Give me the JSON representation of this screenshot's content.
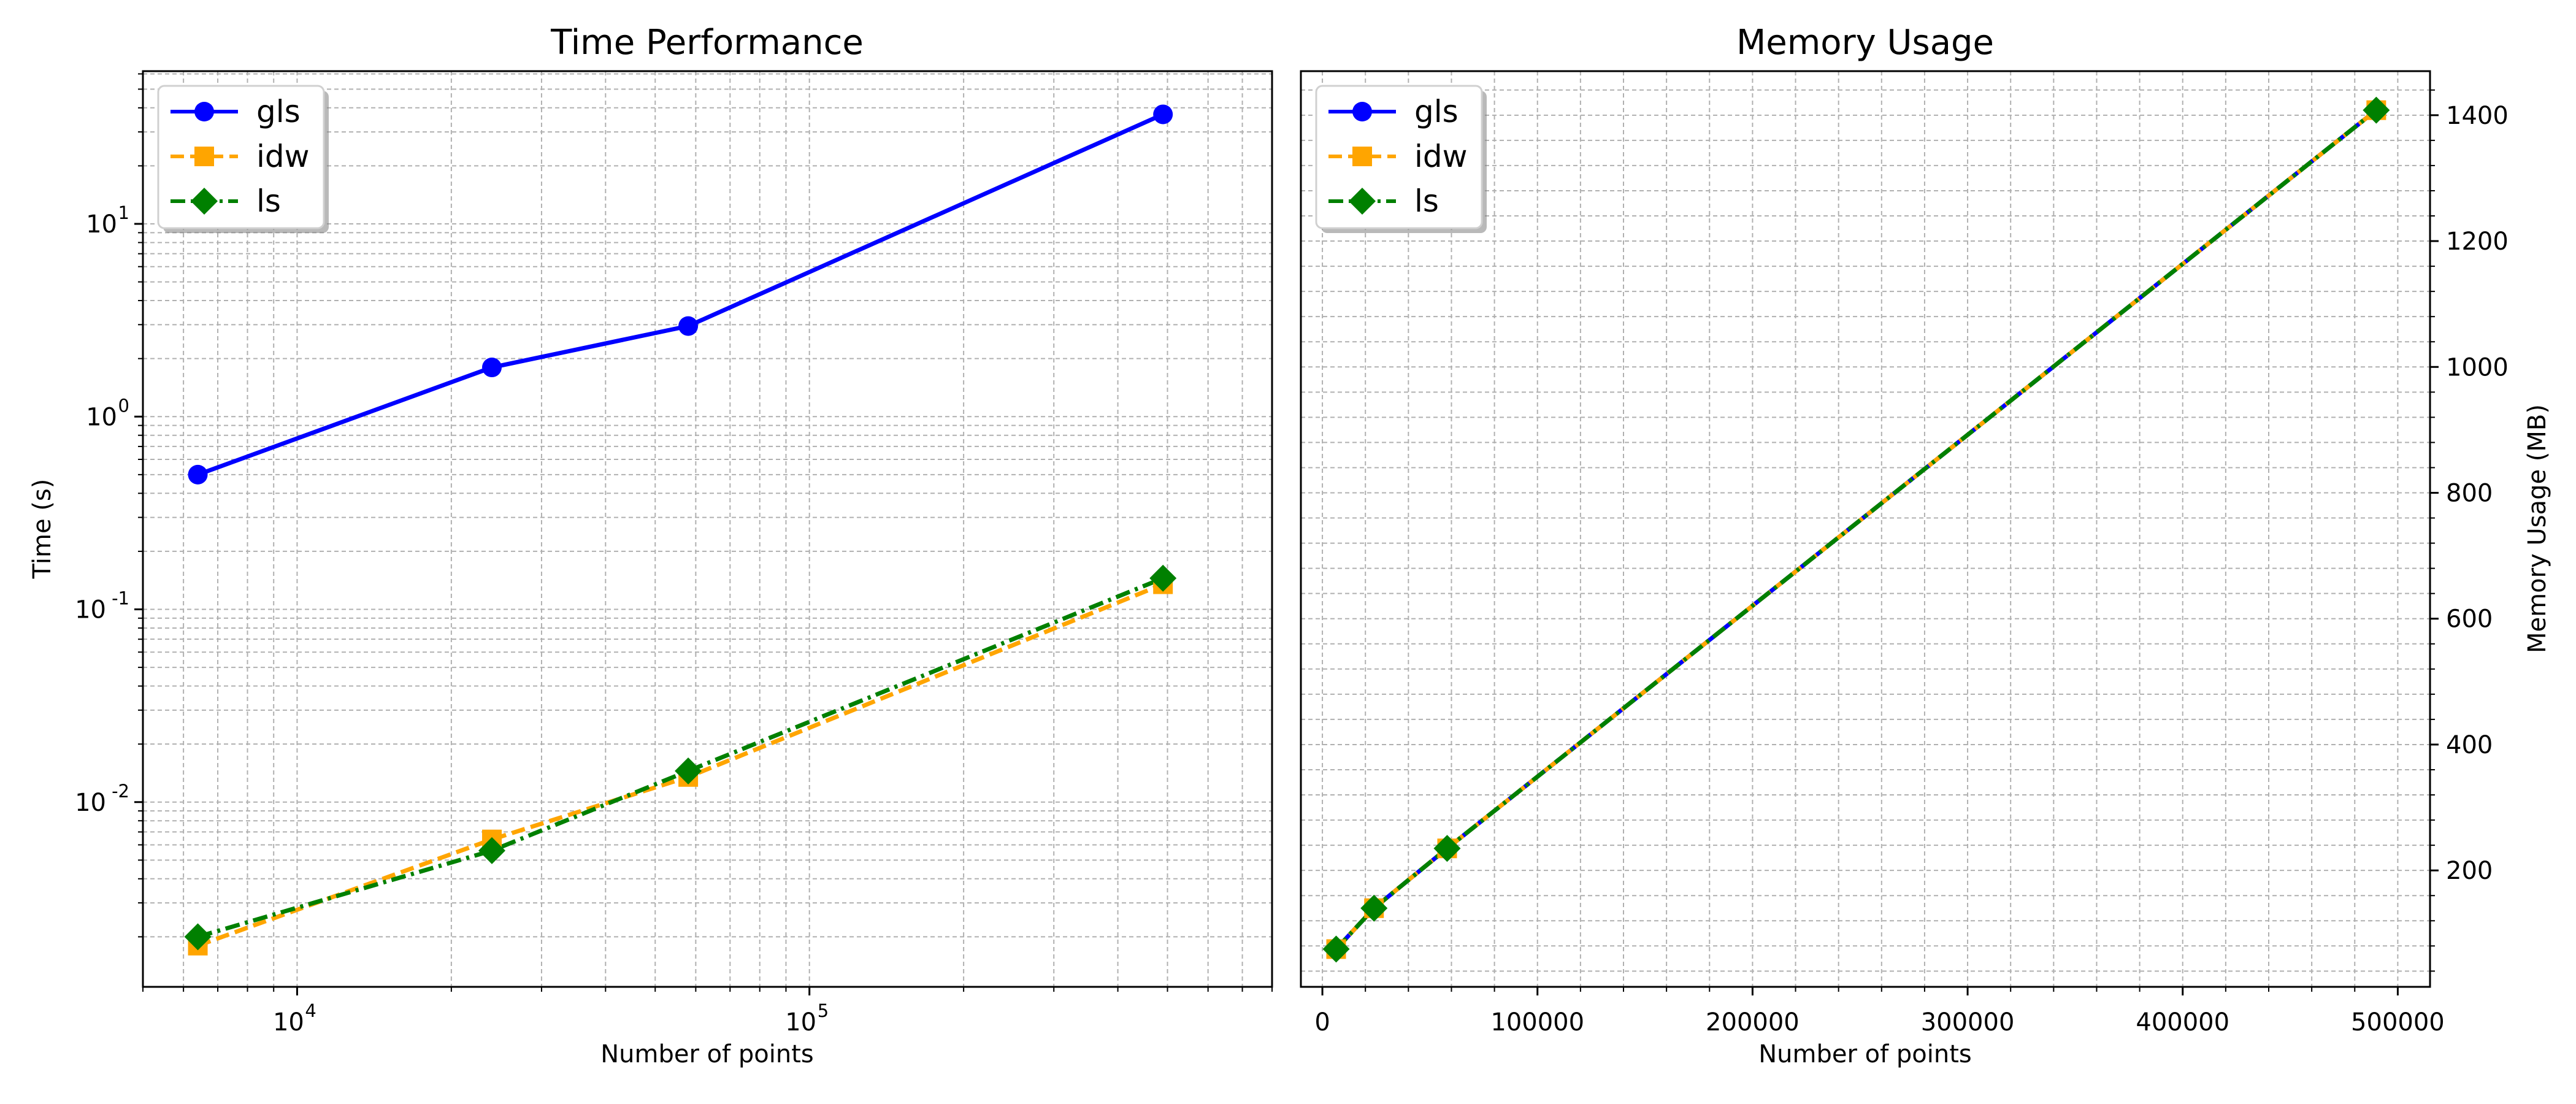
{
  "chart_data": [
    {
      "type": "line",
      "title": "Time Performance",
      "xlabel": "Number of points",
      "ylabel": "Time (s)",
      "xscale": "log",
      "yscale": "log",
      "xlim": [
        5000,
        800000
      ],
      "ylim": [
        0.0011,
        62
      ],
      "xticks": [
        {
          "base": "10",
          "exp": "4",
          "value": 10000
        },
        {
          "base": "10",
          "exp": "5",
          "value": 100000
        }
      ],
      "yticks": [
        {
          "base": "10",
          "exp": "-2",
          "value": 0.01
        },
        {
          "base": "10",
          "exp": "-1",
          "value": 0.1
        },
        {
          "base": "10",
          "exp": "0",
          "value": 1
        },
        {
          "base": "10",
          "exp": "1",
          "value": 10
        }
      ],
      "x": [
        6400,
        24000,
        58000,
        490000
      ],
      "series": [
        {
          "name": "gls",
          "values": [
            0.5,
            1.8,
            2.95,
            37
          ],
          "color": "#0000ff",
          "marker": "circle",
          "linestyle": "solid"
        },
        {
          "name": "idw",
          "values": [
            0.0018,
            0.0064,
            0.0135,
            0.135
          ],
          "color": "#ffa500",
          "marker": "square",
          "linestyle": "dashed"
        },
        {
          "name": "ls",
          "values": [
            0.002,
            0.0056,
            0.0145,
            0.145
          ],
          "color": "#008000",
          "marker": "diamond",
          "linestyle": "dashdot"
        }
      ],
      "grid": true,
      "legend": "top-left"
    },
    {
      "type": "line",
      "title": "Memory Usage",
      "xlabel": "Number of points",
      "ylabel": "Memory Usage (MB)",
      "xlim": [
        -10000,
        515000
      ],
      "ylim": [
        15,
        1470
      ],
      "xticks": [
        "0",
        "100000",
        "200000",
        "300000",
        "400000",
        "500000"
      ],
      "yticks": [
        "200",
        "400",
        "600",
        "800",
        "1000",
        "1200",
        "1400"
      ],
      "yaxis_position": "right",
      "x": [
        6400,
        24000,
        58000,
        490000
      ],
      "series": [
        {
          "name": "gls",
          "values": [
            75,
            140,
            235,
            1408
          ],
          "color": "#0000ff",
          "marker": "circle",
          "linestyle": "solid"
        },
        {
          "name": "idw",
          "values": [
            75,
            140,
            235,
            1408
          ],
          "color": "#ffa500",
          "marker": "square",
          "linestyle": "dashed"
        },
        {
          "name": "ls",
          "values": [
            75,
            140,
            235,
            1408
          ],
          "color": "#008000",
          "marker": "diamond",
          "linestyle": "dashdot"
        }
      ],
      "grid": true,
      "legend": "top-left"
    }
  ]
}
